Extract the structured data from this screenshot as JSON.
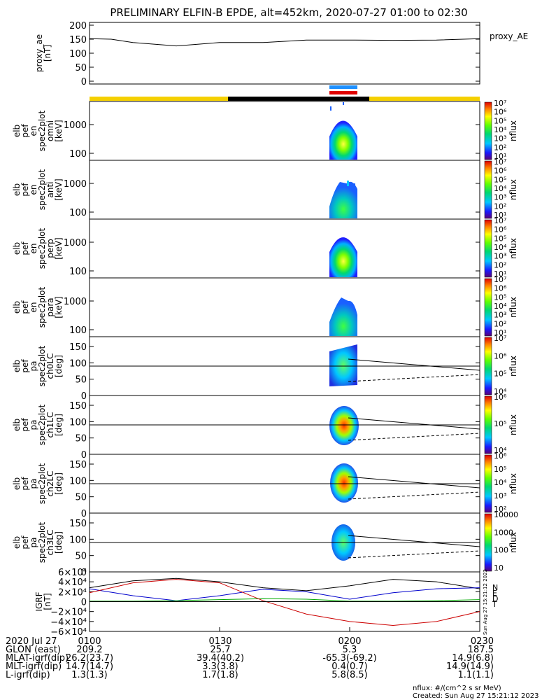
{
  "title": "PRELIMINARY ELFIN-B EPDE, alt=452km, 2020-07-27 01:00 to 02:30",
  "colors": {
    "night_bar": "#000000",
    "day_bar": "#f5d000",
    "blue_marker": "#1e90ff",
    "red_marker": "#e00000",
    "bx": "#000000",
    "by": "#0000cc",
    "bz": "#00aa00",
    "bt": "#cc0000"
  },
  "chart_data": [
    {
      "id": "proxy_ae",
      "type": "line",
      "ylabel": "proxy_ae\n[nT]",
      "legend": "proxy_AE",
      "ylim": [
        -10,
        210
      ],
      "yticks": [
        "0",
        "50",
        "100",
        "150",
        "200"
      ],
      "x_min": [
        0,
        5,
        10,
        20,
        30,
        40,
        50,
        60,
        70,
        80,
        90
      ],
      "values": [
        152,
        150,
        138,
        126,
        138,
        138,
        147,
        147,
        146,
        147,
        152
      ]
    },
    {
      "id": "omni",
      "type": "heatmap",
      "ylabel": "elb\npef\nen\nspec2plot\nomni\n[keV]",
      "y_scale": "log",
      "yticks": [
        "100",
        "1000"
      ],
      "zlabel": "nflux",
      "zticks": [
        "10¹",
        "10²",
        "10³",
        "10⁴",
        "10⁵",
        "10⁶",
        "10⁷"
      ]
    },
    {
      "id": "anti",
      "type": "heatmap",
      "ylabel": "elb\npef\nen\nspec2plot\nanti\n[keV]",
      "y_scale": "log",
      "yticks": [
        "100",
        "1000"
      ],
      "zlabel": "nflux",
      "zticks": [
        "10¹",
        "10²",
        "10³",
        "10⁴",
        "10⁵",
        "10⁶",
        "10⁷"
      ]
    },
    {
      "id": "perp",
      "type": "heatmap",
      "ylabel": "elb\npef\nen\nspec2plot\nperp\n[keV]",
      "y_scale": "log",
      "yticks": [
        "100",
        "1000"
      ],
      "zlabel": "nflux",
      "zticks": [
        "10¹",
        "10²",
        "10³",
        "10⁴",
        "10⁵",
        "10⁶",
        "10⁷"
      ]
    },
    {
      "id": "para",
      "type": "heatmap",
      "ylabel": "elb\npef\nen\nspec2plot\npara\n[keV]",
      "y_scale": "log",
      "yticks": [
        "100",
        "1000"
      ],
      "zlabel": "nflux",
      "zticks": [
        "10¹",
        "10²",
        "10³",
        "10⁴",
        "10⁵",
        "10⁶",
        "10⁷"
      ]
    },
    {
      "id": "ch0LC",
      "type": "heatmap",
      "ylabel": "elb\npef\npa\nspec2plot\nch0LC\n[deg]",
      "yticks": [
        "0",
        "50",
        "100",
        "150"
      ],
      "ylim": [
        0,
        180
      ],
      "zlabel": "nflux",
      "zticks": [
        "10⁴",
        "10⁵",
        "10⁶",
        "10⁷"
      ]
    },
    {
      "id": "ch1LC",
      "type": "heatmap",
      "ylabel": "elb\npef\npa\nspec2plot\nch1LC\n[deg]",
      "yticks": [
        "0",
        "50",
        "100",
        "150"
      ],
      "ylim": [
        0,
        180
      ],
      "zlabel": "nflux",
      "zticks": [
        "10⁴",
        "10⁵",
        "10⁶"
      ]
    },
    {
      "id": "ch2LC",
      "type": "heatmap",
      "ylabel": "elb\npef\npa\nspec2plot\nch2LC\n[deg]",
      "yticks": [
        "0",
        "50",
        "100",
        "150"
      ],
      "ylim": [
        0,
        180
      ],
      "zlabel": "nflux",
      "zticks": [
        "10²",
        "10³",
        "10⁴",
        "10⁵",
        "10⁶"
      ]
    },
    {
      "id": "ch3LC",
      "type": "heatmap",
      "ylabel": "elb\npef\npa\nspec2plot\nch3LC\n[deg]",
      "yticks": [
        "0",
        "50",
        "100",
        "150"
      ],
      "ylim": [
        0,
        180
      ],
      "zlabel": "nflux",
      "zticks": [
        "10",
        "100",
        "1000",
        "10000"
      ]
    },
    {
      "id": "igrf",
      "type": "line",
      "ylabel": "IGRF\n[nT]",
      "ylim": [
        -60000,
        60000
      ],
      "yticks": [
        "−6×10⁴",
        "−4×10⁴",
        "−2×10⁴",
        "0",
        "2×10⁴",
        "4×10⁴",
        "6×10⁴"
      ],
      "legend": [
        "N",
        "E",
        "D",
        "T"
      ],
      "x_min": [
        0,
        10,
        20,
        30,
        40,
        50,
        60,
        70,
        80,
        90
      ],
      "series": [
        {
          "name": "N",
          "values": [
            28000,
            42000,
            47000,
            40000,
            28000,
            22000,
            32000,
            45000,
            40000,
            26000
          ]
        },
        {
          "name": "E",
          "values": [
            26000,
            12000,
            2000,
            12000,
            25000,
            20000,
            5000,
            18000,
            26000,
            28000
          ]
        },
        {
          "name": "D",
          "values": [
            1000,
            1000,
            2000,
            4000,
            6000,
            5000,
            1000,
            1000,
            2000,
            4000
          ]
        },
        {
          "name": "T",
          "values": [
            18000,
            38000,
            45000,
            38000,
            2000,
            -25000,
            -40000,
            -48000,
            -40000,
            -20000
          ]
        }
      ],
      "timestamp": "Sun Aug 27 15:21:12 2023"
    }
  ],
  "footer": {
    "rows": [
      {
        "label": "2020 Jul 27",
        "values": [
          "0100",
          "0130",
          "0200",
          "0230"
        ]
      },
      {
        "label": "GLON (east)",
        "values": [
          "209.2",
          "25.7",
          "5.3",
          "187.5"
        ]
      },
      {
        "label": "MLAT-igrf(dip)",
        "values": [
          "26.2(23.7)",
          "39.4(40.2)",
          "-65.3(-69.2)",
          "14.9(6.8)"
        ]
      },
      {
        "label": "MLT-igrf(dip)",
        "values": [
          "14.7(14.7)",
          "3.3(3.8)",
          "0.4(0.7)",
          "14.9(14.9)"
        ]
      },
      {
        "label": "L-igrf(dip)",
        "values": [
          "1.3(1.3)",
          "1.7(1.8)",
          "5.8(8.5)",
          "1.1(1.1)"
        ]
      }
    ],
    "units_note": "nflux: #/(cm^2 s sr MeV)",
    "created": "Created: Sun Aug 27 15:21:12 2023"
  }
}
